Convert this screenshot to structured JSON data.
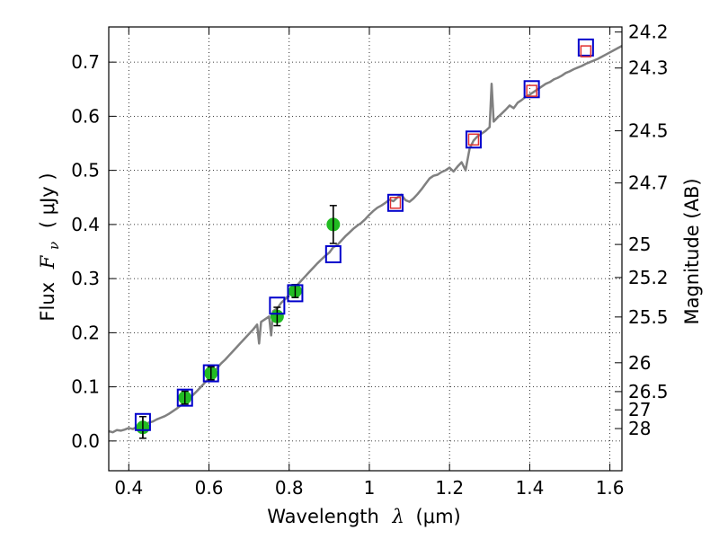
{
  "chart_data": {
    "type": "scatter",
    "xlabel": "Wavelength",
    "xlabel_symbol": "λ",
    "xlabel_unit": "(μm)",
    "ylabel": "Flux",
    "ylabel_symbol": "F",
    "ylabel_subscript": "ν",
    "ylabel_unit": "( μJy )",
    "y2label": "Magnitude (AB)",
    "xlim": [
      0.35,
      1.63
    ],
    "ylim": [
      -0.055,
      0.765
    ],
    "grid": true,
    "x_ticks": [
      0.4,
      0.6,
      0.8,
      1.0,
      1.2,
      1.4,
      1.6
    ],
    "x_tick_labels": [
      "0.4",
      "0.6",
      "0.8",
      "1",
      "1.2",
      "1.4",
      "1.6"
    ],
    "y_ticks": [
      0.0,
      0.1,
      0.2,
      0.3,
      0.4,
      0.5,
      0.6,
      0.7
    ],
    "y_tick_labels": [
      "0.0",
      "0.1",
      "0.2",
      "0.3",
      "0.4",
      "0.5",
      "0.6",
      "0.7"
    ],
    "mag_ticks": [
      {
        "label": "24.2",
        "flux": 0.7556
      },
      {
        "label": "24.3",
        "flux": 0.6891
      },
      {
        "label": "24.5",
        "flux": 0.5731
      },
      {
        "label": "24.7",
        "flux": 0.4767
      },
      {
        "label": "25",
        "flux": 0.3631
      },
      {
        "label": "25.2",
        "flux": 0.302
      },
      {
        "label": "25.5",
        "flux": 0.2291
      },
      {
        "label": "26",
        "flux": 0.1445
      },
      {
        "label": "26.5",
        "flux": 0.0912
      },
      {
        "label": "27",
        "flux": 0.0575
      },
      {
        "label": "28",
        "flux": 0.0229
      }
    ],
    "series": [
      {
        "name": "model spectrum",
        "style": "line",
        "color": "#808080",
        "x": [
          0.35,
          0.36,
          0.37,
          0.38,
          0.39,
          0.4,
          0.41,
          0.42,
          0.43,
          0.44,
          0.45,
          0.46,
          0.47,
          0.48,
          0.49,
          0.5,
          0.51,
          0.52,
          0.53,
          0.54,
          0.55,
          0.56,
          0.57,
          0.58,
          0.59,
          0.6,
          0.61,
          0.62,
          0.63,
          0.64,
          0.65,
          0.66,
          0.67,
          0.68,
          0.69,
          0.7,
          0.71,
          0.72,
          0.725,
          0.73,
          0.74,
          0.75,
          0.755,
          0.76,
          0.77,
          0.78,
          0.79,
          0.8,
          0.81,
          0.82,
          0.83,
          0.84,
          0.85,
          0.86,
          0.87,
          0.88,
          0.89,
          0.9,
          0.91,
          0.92,
          0.93,
          0.94,
          0.95,
          0.96,
          0.97,
          0.98,
          0.99,
          1.0,
          1.01,
          1.02,
          1.03,
          1.04,
          1.05,
          1.06,
          1.07,
          1.08,
          1.09,
          1.1,
          1.11,
          1.12,
          1.13,
          1.14,
          1.15,
          1.16,
          1.17,
          1.18,
          1.19,
          1.2,
          1.21,
          1.22,
          1.23,
          1.24,
          1.25,
          1.26,
          1.27,
          1.28,
          1.29,
          1.3,
          1.305,
          1.31,
          1.32,
          1.33,
          1.34,
          1.35,
          1.36,
          1.37,
          1.38,
          1.39,
          1.4,
          1.41,
          1.42,
          1.43,
          1.44,
          1.45,
          1.46,
          1.47,
          1.48,
          1.49,
          1.5,
          1.51,
          1.52,
          1.53,
          1.54,
          1.55,
          1.56,
          1.57,
          1.58,
          1.59,
          1.6,
          1.61,
          1.62,
          1.63
        ],
        "y": [
          0.018,
          0.016,
          0.02,
          0.019,
          0.021,
          0.024,
          0.022,
          0.026,
          0.028,
          0.03,
          0.034,
          0.036,
          0.04,
          0.043,
          0.046,
          0.05,
          0.055,
          0.06,
          0.066,
          0.072,
          0.078,
          0.085,
          0.092,
          0.1,
          0.108,
          0.116,
          0.125,
          0.134,
          0.143,
          0.15,
          0.158,
          0.166,
          0.174,
          0.182,
          0.19,
          0.198,
          0.206,
          0.215,
          0.18,
          0.22,
          0.225,
          0.23,
          0.195,
          0.24,
          0.245,
          0.255,
          0.262,
          0.27,
          0.28,
          0.288,
          0.296,
          0.304,
          0.312,
          0.32,
          0.328,
          0.335,
          0.342,
          0.348,
          0.358,
          0.362,
          0.37,
          0.378,
          0.385,
          0.392,
          0.398,
          0.403,
          0.41,
          0.418,
          0.425,
          0.431,
          0.435,
          0.44,
          0.446,
          0.443,
          0.45,
          0.455,
          0.445,
          0.442,
          0.448,
          0.456,
          0.465,
          0.475,
          0.485,
          0.49,
          0.492,
          0.497,
          0.5,
          0.505,
          0.498,
          0.507,
          0.515,
          0.5,
          0.54,
          0.555,
          0.563,
          0.568,
          0.573,
          0.58,
          0.66,
          0.59,
          0.598,
          0.605,
          0.612,
          0.62,
          0.615,
          0.625,
          0.63,
          0.636,
          0.64,
          0.645,
          0.65,
          0.655,
          0.66,
          0.663,
          0.668,
          0.671,
          0.675,
          0.68,
          0.683,
          0.687,
          0.69,
          0.693,
          0.697,
          0.7,
          0.703,
          0.706,
          0.71,
          0.714,
          0.718,
          0.722,
          0.726,
          0.73
        ]
      },
      {
        "name": "synthetic photometry (blue boxes)",
        "style": "square",
        "color": "#0000cc",
        "x": [
          0.435,
          0.54,
          0.605,
          0.77,
          0.815,
          0.91,
          1.065,
          1.26,
          1.405,
          1.54
        ],
        "y": [
          0.035,
          0.08,
          0.125,
          0.25,
          0.273,
          0.345,
          0.44,
          0.557,
          0.65,
          0.727
        ]
      },
      {
        "name": "near-IR measured (red boxes)",
        "style": "square-small",
        "color": "#e03030",
        "x": [
          1.065,
          1.26,
          1.405,
          1.54
        ],
        "y": [
          0.44,
          0.557,
          0.647,
          0.72
        ]
      },
      {
        "name": "optical measured (green points)",
        "style": "point-errorbar",
        "color": "#22bb22",
        "x": [
          0.435,
          0.54,
          0.605,
          0.77,
          0.815,
          0.91
        ],
        "y": [
          0.025,
          0.08,
          0.125,
          0.23,
          0.277,
          0.4
        ],
        "yerr": [
          0.02,
          0.012,
          0.012,
          0.017,
          0.012,
          0.035
        ]
      }
    ]
  }
}
